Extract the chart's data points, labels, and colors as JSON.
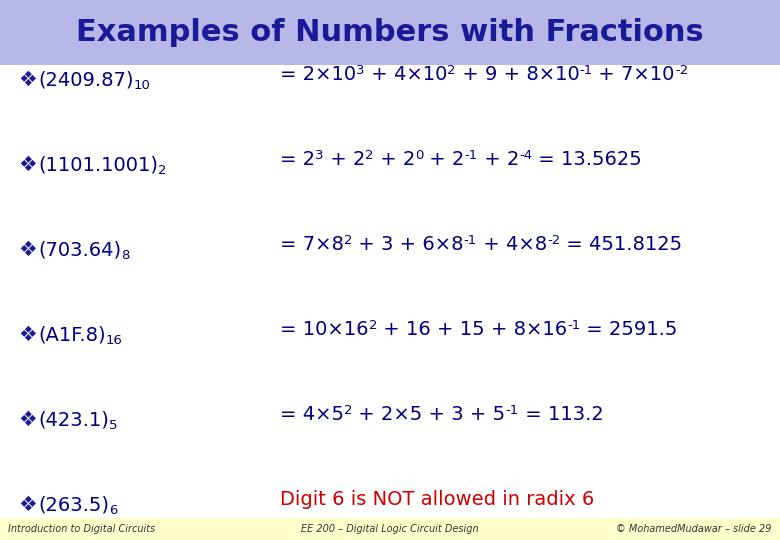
{
  "title": "Examples of Numbers with Fractions",
  "title_color": "#1a1a99",
  "title_bg_color": "#b8b8e8",
  "body_bg_color": "#ffffff",
  "footer_bg_color": "#ffffcc",
  "title_fontsize": 22,
  "content_fontsize": 14,
  "footer_fontsize": 7,
  "bullet": "❖",
  "bullet_color": "#1a1a99",
  "navy": "#000080",
  "rows": [
    {
      "left": "(2409.87)",
      "left_sub": "10",
      "right_parts": [
        {
          "text": "= 2×10",
          "style": "normal"
        },
        {
          "text": "3",
          "style": "super"
        },
        {
          "text": " + 4×10",
          "style": "normal"
        },
        {
          "text": "2",
          "style": "super"
        },
        {
          "text": " + 9 + 8×10",
          "style": "normal"
        },
        {
          "text": "-1",
          "style": "super"
        },
        {
          "text": " + 7×10",
          "style": "normal"
        },
        {
          "text": "-2",
          "style": "super"
        }
      ]
    },
    {
      "left": "(1101.1001)",
      "left_sub": "2",
      "right_parts": [
        {
          "text": "= 2",
          "style": "normal"
        },
        {
          "text": "3",
          "style": "super"
        },
        {
          "text": " + 2",
          "style": "normal"
        },
        {
          "text": "2",
          "style": "super"
        },
        {
          "text": " + 2",
          "style": "normal"
        },
        {
          "text": "0",
          "style": "super"
        },
        {
          "text": " + 2",
          "style": "normal"
        },
        {
          "text": "-1",
          "style": "super"
        },
        {
          "text": " + 2",
          "style": "normal"
        },
        {
          "text": "-4",
          "style": "super"
        },
        {
          "text": " = 13.5625",
          "style": "normal"
        }
      ]
    },
    {
      "left": "(703.64)",
      "left_sub": "8",
      "right_parts": [
        {
          "text": "= 7×8",
          "style": "normal"
        },
        {
          "text": "2",
          "style": "super"
        },
        {
          "text": " + 3 + 6×8",
          "style": "normal"
        },
        {
          "text": "-1",
          "style": "super"
        },
        {
          "text": " + 4×8",
          "style": "normal"
        },
        {
          "text": "-2",
          "style": "super"
        },
        {
          "text": " = 451.8125",
          "style": "normal"
        }
      ]
    },
    {
      "left": "(A1F.8)",
      "left_sub": "16",
      "right_parts": [
        {
          "text": "= 10×16",
          "style": "normal"
        },
        {
          "text": "2",
          "style": "super"
        },
        {
          "text": " + 16 + 15 + 8×16",
          "style": "normal"
        },
        {
          "text": "-1",
          "style": "super"
        },
        {
          "text": " = 2591.5",
          "style": "normal"
        }
      ]
    },
    {
      "left": "(423.1)",
      "left_sub": "5",
      "right_parts": [
        {
          "text": "= 4×5",
          "style": "normal"
        },
        {
          "text": "2",
          "style": "super"
        },
        {
          "text": " + 2×5 + 3 + 5",
          "style": "normal"
        },
        {
          "text": "-1",
          "style": "super"
        },
        {
          "text": " = 113.2",
          "style": "normal"
        }
      ]
    },
    {
      "left": "(263.5)",
      "left_sub": "6",
      "right_parts": [
        {
          "text": "Digit 6 is NOT allowed in radix 6",
          "style": "red"
        }
      ]
    }
  ],
  "footer_left": "Introduction to Digital Circuits",
  "footer_center": "EE 200 – Digital Logic Circuit Design",
  "footer_right": "© MohamedMudawar – slide 29"
}
